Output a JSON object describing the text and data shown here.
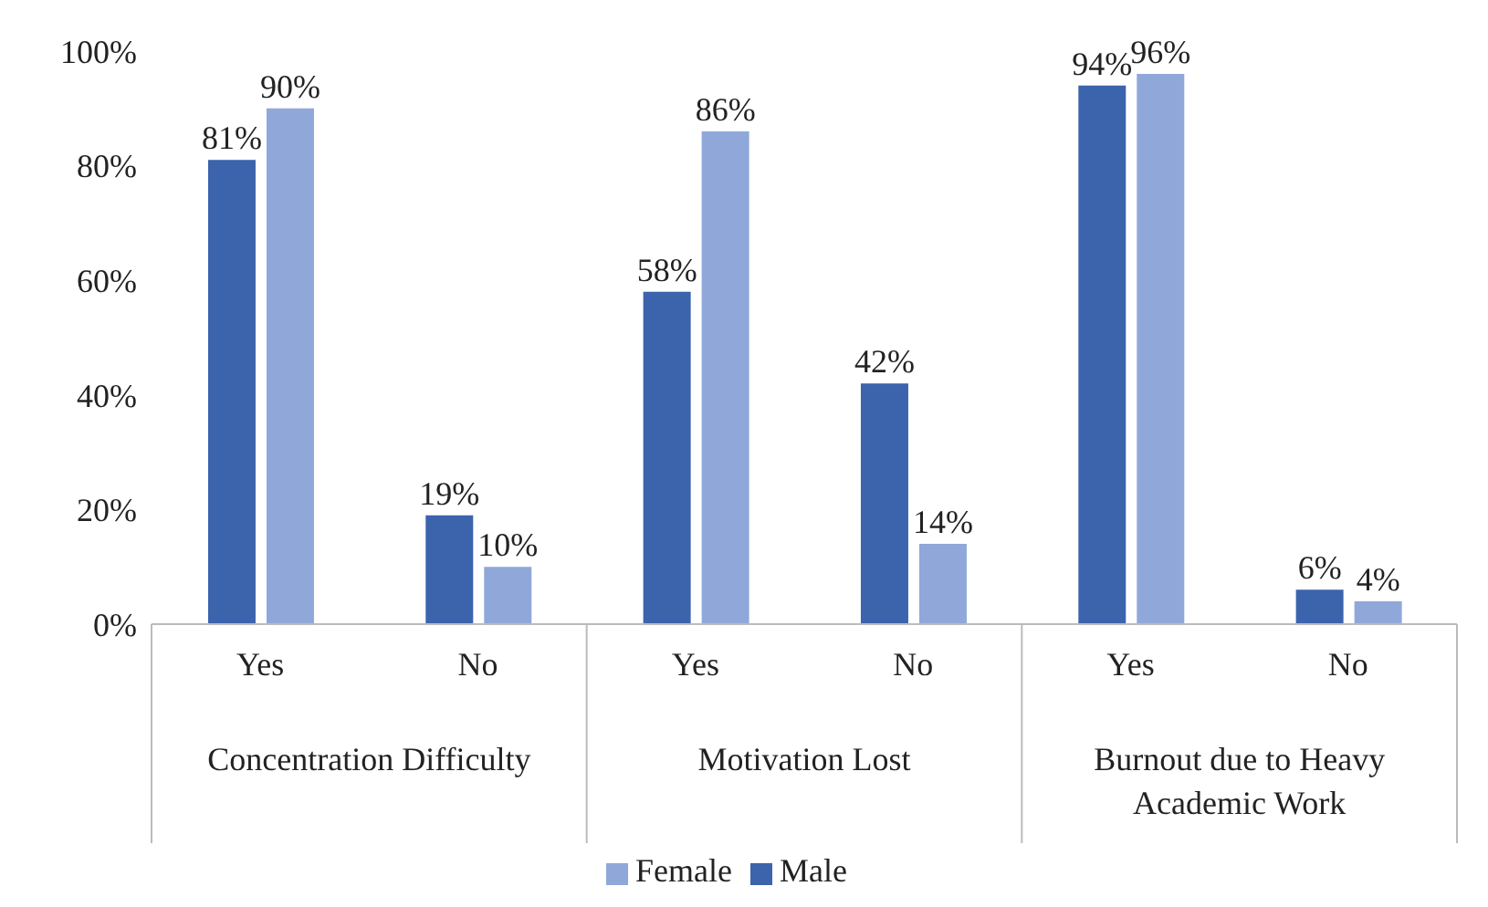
{
  "chart_data": {
    "type": "bar",
    "categories": [
      "Yes",
      "No",
      "Yes",
      "No",
      "Yes",
      "No"
    ],
    "series": [
      {
        "name": "Male",
        "color": "#3b64ad",
        "values": [
          81,
          19,
          58,
          42,
          94,
          6
        ],
        "value_labels": [
          "81%",
          "19%",
          "58%",
          "42%",
          "94%",
          "6%"
        ]
      },
      {
        "name": "Female",
        "color": "#8fa8d9",
        "values": [
          90,
          10,
          86,
          14,
          96,
          4
        ],
        "value_labels": [
          "90%",
          "10%",
          "86%",
          "14%",
          "96%",
          "4%"
        ]
      }
    ],
    "annotations": [
      "Concentration Difficulty",
      "Motivation Lost",
      "Burnout due to Heavy Academic Work"
    ],
    "ylim": [
      0,
      100
    ],
    "yticks": [
      {
        "value": 0,
        "label": "0%"
      },
      {
        "value": 20,
        "label": "20%"
      },
      {
        "value": 40,
        "label": "40%"
      },
      {
        "value": 60,
        "label": "60%"
      },
      {
        "value": 80,
        "label": "80%"
      },
      {
        "value": 100,
        "label": "100%"
      }
    ],
    "legend": "bottom"
  }
}
